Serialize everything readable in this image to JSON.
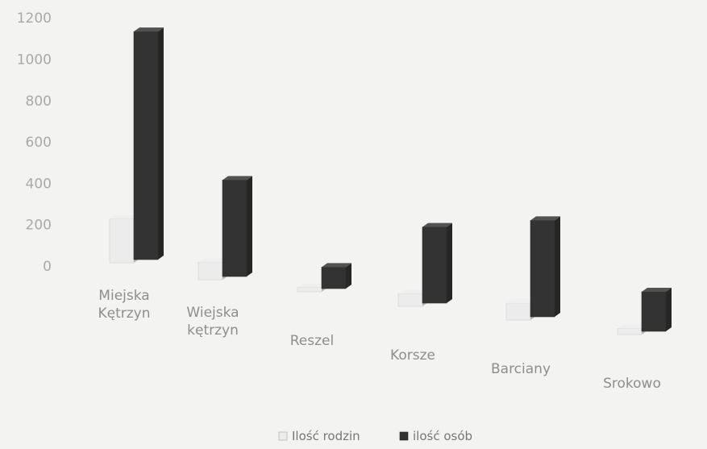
{
  "chart_data": {
    "type": "bar",
    "style": "3d-column-perspective",
    "categories": [
      "Miejska\nKętrzyn",
      "Wiejska\nkętrzyn",
      "Reszel",
      "Korsze",
      "Barciany",
      "Srokowo"
    ],
    "series": [
      {
        "name": "Ilość rodzin",
        "values": [
          200,
          80,
          20,
          60,
          80,
          30
        ],
        "color": "#ececec"
      },
      {
        "name": "ilość osób",
        "values": [
          1040,
          440,
          100,
          360,
          460,
          190
        ],
        "color": "#333333"
      }
    ],
    "y_ticks": [
      "0",
      "200",
      "400",
      "600",
      "800",
      "1000",
      "1200"
    ],
    "ylim": [
      0,
      1200
    ],
    "grid": false,
    "legend_position": "bottom-center"
  }
}
